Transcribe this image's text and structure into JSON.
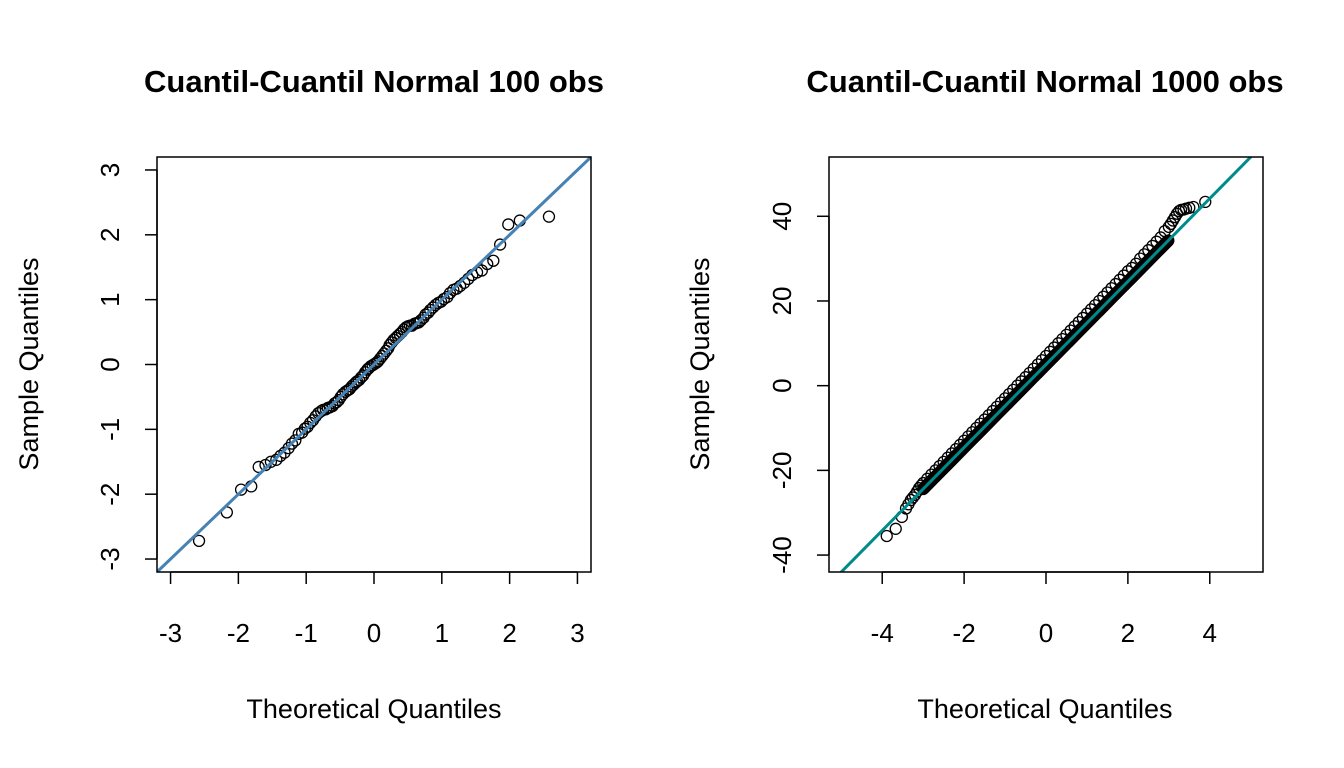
{
  "chart_data": [
    {
      "type": "scatter",
      "title": "Cuantil-Cuantil Normal 100 obs",
      "xlabel": "Theoretical Quantiles",
      "ylabel": "Sample Quantiles",
      "xlim": [
        -3.2,
        3.2
      ],
      "ylim": [
        -3.2,
        3.2
      ],
      "xticks": [
        -3,
        -2,
        -1,
        0,
        1,
        2,
        3
      ],
      "yticks": [
        -3,
        -2,
        -1,
        0,
        1,
        2,
        3
      ],
      "grid": false,
      "n_obs": 100,
      "reference_line": {
        "intercept": 0.0,
        "slope": 1.0,
        "color": "#4682B4"
      },
      "points": {
        "x": [
          -2.58,
          -2.17,
          -1.96,
          -1.81,
          -1.7,
          -1.6,
          -1.52,
          -1.44,
          -1.38,
          -1.32,
          -1.26,
          -1.21,
          -1.16,
          -1.11,
          -1.06,
          -1.02,
          -0.98,
          -0.94,
          -0.9,
          -0.86,
          -0.82,
          -0.78,
          -0.75,
          -0.71,
          -0.68,
          -0.65,
          -0.61,
          -0.58,
          -0.55,
          -0.52,
          -0.49,
          -0.46,
          -0.42,
          -0.39,
          -0.36,
          -0.33,
          -0.3,
          -0.27,
          -0.25,
          -0.22,
          -0.19,
          -0.16,
          -0.13,
          -0.1,
          -0.08,
          -0.05,
          -0.02,
          0.01,
          0.04,
          0.06,
          0.09,
          0.12,
          0.15,
          0.18,
          0.21,
          0.23,
          0.26,
          0.29,
          0.32,
          0.35,
          0.38,
          0.41,
          0.44,
          0.47,
          0.5,
          0.53,
          0.56,
          0.6,
          0.63,
          0.66,
          0.69,
          0.73,
          0.76,
          0.8,
          0.83,
          0.87,
          0.91,
          0.95,
          0.99,
          1.03,
          1.08,
          1.12,
          1.17,
          1.22,
          1.27,
          1.33,
          1.39,
          1.45,
          1.52,
          1.59,
          1.67,
          1.76,
          1.86,
          1.98,
          2.15,
          2.58
        ],
        "y": [
          -2.72,
          -2.28,
          -1.93,
          -1.88,
          -1.58,
          -1.55,
          -1.5,
          -1.47,
          -1.41,
          -1.36,
          -1.29,
          -1.22,
          -1.17,
          -1.07,
          -1.05,
          -0.99,
          -0.96,
          -0.9,
          -0.86,
          -0.8,
          -0.75,
          -0.72,
          -0.7,
          -0.69,
          -0.67,
          -0.66,
          -0.64,
          -0.6,
          -0.58,
          -0.55,
          -0.5,
          -0.46,
          -0.42,
          -0.4,
          -0.38,
          -0.34,
          -0.31,
          -0.28,
          -0.26,
          -0.24,
          -0.2,
          -0.17,
          -0.12,
          -0.08,
          -0.06,
          -0.03,
          -0.01,
          0.01,
          0.03,
          0.05,
          0.09,
          0.13,
          0.17,
          0.21,
          0.25,
          0.3,
          0.34,
          0.38,
          0.41,
          0.44,
          0.47,
          0.5,
          0.54,
          0.57,
          0.59,
          0.6,
          0.6,
          0.63,
          0.64,
          0.65,
          0.68,
          0.72,
          0.77,
          0.8,
          0.84,
          0.88,
          0.92,
          0.95,
          0.97,
          1.01,
          1.04,
          1.1,
          1.15,
          1.17,
          1.21,
          1.26,
          1.32,
          1.38,
          1.42,
          1.45,
          1.55,
          1.6,
          1.85,
          2.16,
          2.22,
          2.28
        ]
      }
    },
    {
      "type": "scatter",
      "title": "Cuantil-Cuantil Normal 1000 obs",
      "xlabel": "Theoretical Quantiles",
      "ylabel": "Sample Quantiles",
      "xlim": [
        -5.3,
        5.3
      ],
      "ylim": [
        -44,
        54
      ],
      "xticks": [
        -4,
        -2,
        0,
        2,
        4
      ],
      "yticks": [
        -40,
        -20,
        0,
        20,
        40
      ],
      "grid": false,
      "n_obs": 1000,
      "reference_line": {
        "intercept": 5.0,
        "slope": 9.8,
        "color": "#008B8B"
      },
      "points": {
        "x": [
          -3.89,
          -3.67,
          -3.52,
          -3.42,
          -3.36,
          -3.3,
          -3.25,
          -3.2,
          -3.15,
          -3.1,
          -3.05,
          -3.0,
          -2.9,
          -2.8,
          -2.7,
          -2.6,
          -2.5,
          -2.4,
          -2.3,
          -2.2,
          -2.1,
          -2.0,
          -1.9,
          -1.8,
          -1.7,
          -1.6,
          -1.5,
          -1.4,
          -1.3,
          -1.2,
          -1.1,
          -1.0,
          -0.9,
          -0.8,
          -0.7,
          -0.6,
          -0.5,
          -0.4,
          -0.3,
          -0.2,
          -0.1,
          0.0,
          0.1,
          0.2,
          0.3,
          0.4,
          0.5,
          0.6,
          0.7,
          0.8,
          0.9,
          1.0,
          1.1,
          1.2,
          1.3,
          1.4,
          1.5,
          1.6,
          1.7,
          1.8,
          1.9,
          2.0,
          2.1,
          2.2,
          2.3,
          2.4,
          2.5,
          2.6,
          2.7,
          2.8,
          2.9,
          3.0,
          3.05,
          3.1,
          3.15,
          3.2,
          3.25,
          3.3,
          3.36,
          3.42,
          3.5,
          3.6,
          3.89
        ],
        "y": [
          -35.5,
          -33.8,
          -31.0,
          -29.0,
          -28.0,
          -27.0,
          -26.4,
          -25.8,
          -25.0,
          -24.2,
          -23.6,
          -23.0,
          -22.0,
          -21.0,
          -20.0,
          -19.0,
          -18.0,
          -17.0,
          -16.0,
          -15.0,
          -14.0,
          -13.0,
          -12.0,
          -11.0,
          -10.0,
          -9.0,
          -8.0,
          -7.0,
          -6.0,
          -5.0,
          -4.0,
          -3.0,
          -2.0,
          -1.0,
          0.0,
          1.0,
          2.0,
          3.0,
          4.0,
          5.0,
          6.0,
          7.0,
          8.0,
          9.0,
          10.0,
          11.0,
          12.0,
          13.0,
          14.0,
          15.0,
          16.0,
          17.0,
          18.0,
          19.0,
          20.0,
          21.0,
          22.0,
          23.0,
          24.0,
          25.0,
          26.0,
          27.0,
          27.8,
          28.8,
          30.0,
          31.0,
          32.0,
          33.0,
          34.0,
          35.0,
          36.5,
          37.5,
          38.2,
          39.0,
          39.8,
          40.6,
          41.2,
          41.5,
          41.6,
          41.8,
          42.0,
          42.2,
          43.4
        ]
      }
    }
  ]
}
